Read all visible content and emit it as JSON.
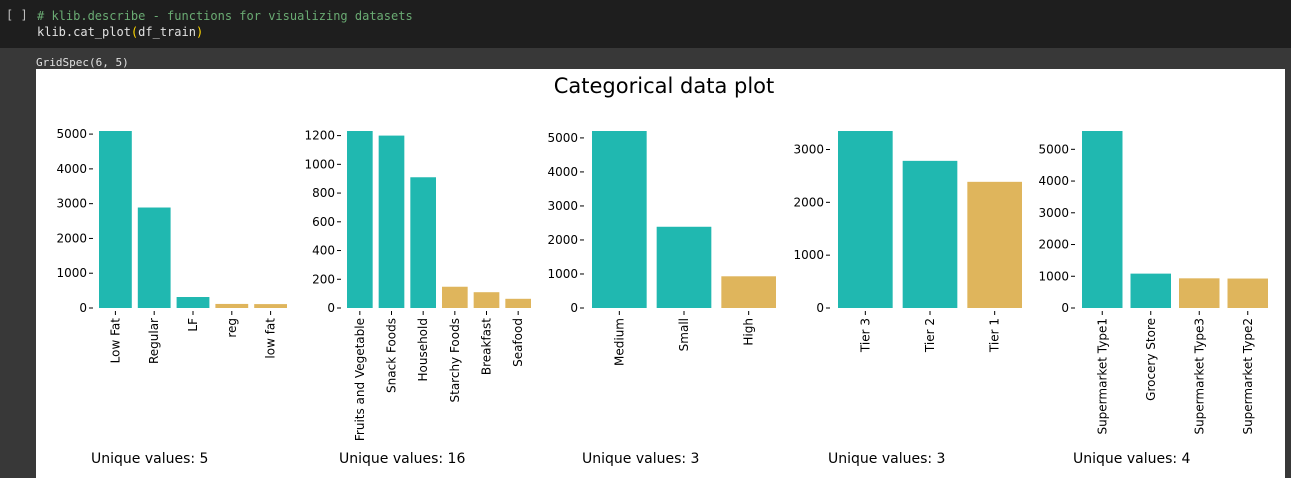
{
  "cell": {
    "run_indicator": "[ ]",
    "comment": "# klib.describe - functions for visualizing datasets",
    "code_fn": "klib.cat_plot",
    "code_open": "(",
    "code_arg": "df_train",
    "code_close": ")"
  },
  "output": {
    "text": "GridSpec(6, 5)"
  },
  "chart_data": [
    {
      "type": "bar",
      "suptitle": "Categorical data plot",
      "categories": [
        "Low Fat",
        "Regular",
        "LF",
        "reg",
        "low fat"
      ],
      "values": [
        5089,
        2889,
        316,
        117,
        112
      ],
      "highlight": [
        true,
        true,
        true,
        false,
        false
      ],
      "yticks": [
        0,
        1000,
        2000,
        3000,
        4000,
        5000
      ],
      "ylim": [
        0,
        5089
      ],
      "unique_label": "Unique values: 5"
    },
    {
      "type": "bar",
      "categories": [
        "Fruits and Vegetable",
        "Snack Foods",
        "Household",
        "Starchy Foods",
        "Breakfast",
        "Seafood"
      ],
      "values": [
        1232,
        1200,
        910,
        148,
        110,
        64
      ],
      "highlight": [
        true,
        true,
        true,
        false,
        false,
        false
      ],
      "yticks": [
        0,
        200,
        400,
        600,
        800,
        1000,
        1200
      ],
      "ylim": [
        0,
        1232
      ],
      "unique_label": "Unique values: 16"
    },
    {
      "type": "bar",
      "categories": [
        "Medium",
        "Small",
        "High"
      ],
      "values": [
        5203,
        2388,
        932
      ],
      "highlight": [
        true,
        true,
        false
      ],
      "yticks": [
        0,
        1000,
        2000,
        3000,
        4000,
        5000
      ],
      "ylim": [
        0,
        5203
      ],
      "unique_label": "Unique values: 3"
    },
    {
      "type": "bar",
      "categories": [
        "Tier 3",
        "Tier 2",
        "Tier 1"
      ],
      "values": [
        3350,
        2785,
        2388
      ],
      "highlight": [
        true,
        true,
        false
      ],
      "yticks": [
        0,
        1000,
        2000,
        3000
      ],
      "ylim": [
        0,
        3350
      ],
      "unique_label": "Unique values: 3"
    },
    {
      "type": "bar",
      "categories": [
        "Supermarket Type1",
        "Grocery Store",
        "Supermarket Type3",
        "Supermarket Type2"
      ],
      "values": [
        5577,
        1083,
        935,
        928
      ],
      "highlight": [
        true,
        true,
        false,
        false
      ],
      "yticks": [
        0,
        1000,
        2000,
        3000,
        4000,
        5000
      ],
      "ylim": [
        0,
        5577
      ],
      "unique_label": "Unique values: 4"
    }
  ],
  "colors": {
    "primary_bar": "#20b8b0",
    "secondary_bar": "#dfb55c"
  }
}
